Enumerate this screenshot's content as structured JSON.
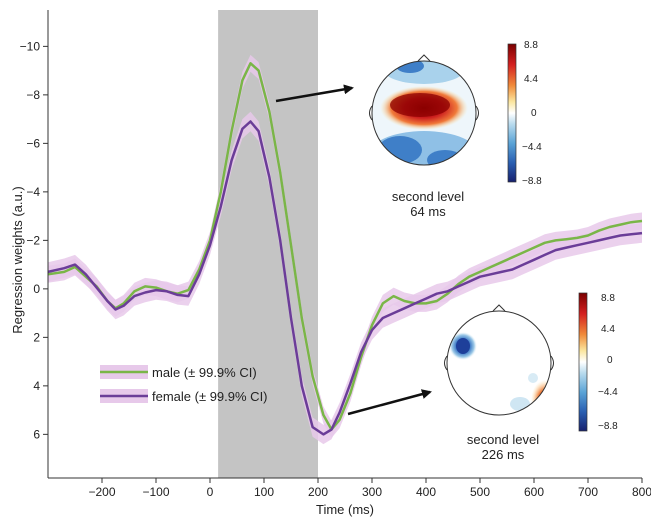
{
  "chart_data": {
    "type": "line",
    "xlabel": "Time (ms)",
    "ylabel": "Regression weights (a.u.)",
    "xlim": [
      -300,
      800
    ],
    "ylim": [
      -11.5,
      7.8
    ],
    "y_axis_inverted": true,
    "x_ticks": [
      -200,
      -100,
      0,
      100,
      200,
      300,
      400,
      500,
      600,
      700,
      800
    ],
    "y_ticks": [
      -10,
      -8,
      -6,
      -4,
      -2,
      0,
      2,
      4,
      6
    ],
    "highlight_window": [
      15,
      200
    ],
    "series": [
      {
        "name": "male (± 99.9% CI)",
        "color": "#7ab648",
        "ci_color": "#e7c9ea",
        "ci_half_width": 0.35,
        "x": [
          -300,
          -270,
          -250,
          -230,
          -210,
          -190,
          -175,
          -160,
          -140,
          -120,
          -100,
          -80,
          -60,
          -40,
          -20,
          0,
          20,
          40,
          60,
          75,
          90,
          110,
          130,
          150,
          170,
          190,
          210,
          225,
          240,
          260,
          280,
          300,
          320,
          340,
          360,
          380,
          400,
          420,
          440,
          460,
          480,
          500,
          520,
          540,
          560,
          580,
          600,
          620,
          640,
          660,
          680,
          700,
          720,
          740,
          760,
          780,
          800
        ],
        "values": [
          -0.6,
          -0.7,
          -0.9,
          -0.5,
          -0.1,
          0.5,
          0.8,
          0.6,
          0.1,
          -0.1,
          -0.05,
          0.1,
          0.2,
          0.05,
          -0.8,
          -2.0,
          -4.0,
          -6.5,
          -8.6,
          -9.3,
          -9.0,
          -7.3,
          -4.8,
          -1.8,
          1.2,
          3.6,
          5.2,
          5.8,
          5.4,
          4.3,
          2.8,
          1.5,
          0.6,
          0.3,
          0.5,
          0.6,
          0.6,
          0.5,
          0.2,
          -0.2,
          -0.5,
          -0.7,
          -0.9,
          -1.1,
          -1.3,
          -1.5,
          -1.7,
          -1.9,
          -2.0,
          -2.05,
          -2.1,
          -2.2,
          -2.4,
          -2.55,
          -2.65,
          -2.75,
          -2.8
        ]
      },
      {
        "name": "female (± 99.9% CI)",
        "color": "#6b3d98",
        "ci_color": "#e7c9ea",
        "ci_half_width": 0.4,
        "x": [
          -300,
          -270,
          -250,
          -230,
          -210,
          -190,
          -175,
          -160,
          -140,
          -120,
          -100,
          -80,
          -60,
          -40,
          -20,
          0,
          20,
          40,
          60,
          75,
          90,
          110,
          130,
          150,
          170,
          190,
          210,
          225,
          240,
          260,
          280,
          300,
          320,
          340,
          360,
          380,
          400,
          420,
          440,
          460,
          480,
          500,
          520,
          540,
          560,
          580,
          600,
          620,
          640,
          660,
          680,
          700,
          720,
          740,
          760,
          780,
          800
        ],
        "values": [
          -0.7,
          -0.85,
          -1.0,
          -0.6,
          -0.05,
          0.5,
          0.85,
          0.7,
          0.3,
          0.15,
          0.05,
          0.1,
          0.25,
          0.3,
          -0.6,
          -1.8,
          -3.4,
          -5.3,
          -6.6,
          -6.9,
          -6.5,
          -4.6,
          -2.0,
          1.2,
          4.0,
          5.7,
          6.0,
          5.8,
          5.1,
          3.9,
          2.6,
          1.7,
          1.2,
          1.0,
          0.8,
          0.6,
          0.4,
          0.2,
          0.1,
          -0.1,
          -0.3,
          -0.5,
          -0.6,
          -0.7,
          -0.8,
          -1.0,
          -1.2,
          -1.4,
          -1.6,
          -1.7,
          -1.8,
          -1.9,
          -2.0,
          -2.1,
          -2.2,
          -2.25,
          -2.3
        ]
      }
    ],
    "legend": {
      "placement": "lower-left",
      "entries": [
        "male (± 99.9% CI)",
        "female (± 99.9% CI)"
      ]
    },
    "annotations": [
      {
        "label_line1": "second level",
        "label_line2": "64 ms",
        "colorbar_ticks": [
          "8.8",
          "4.4",
          "0",
          "−4.4",
          "−8.8"
        ]
      },
      {
        "label_line1": "second level",
        "label_line2": "226 ms",
        "colorbar_ticks": [
          "8.8",
          "4.4",
          "0",
          "−4.4",
          "−8.8"
        ]
      }
    ]
  }
}
